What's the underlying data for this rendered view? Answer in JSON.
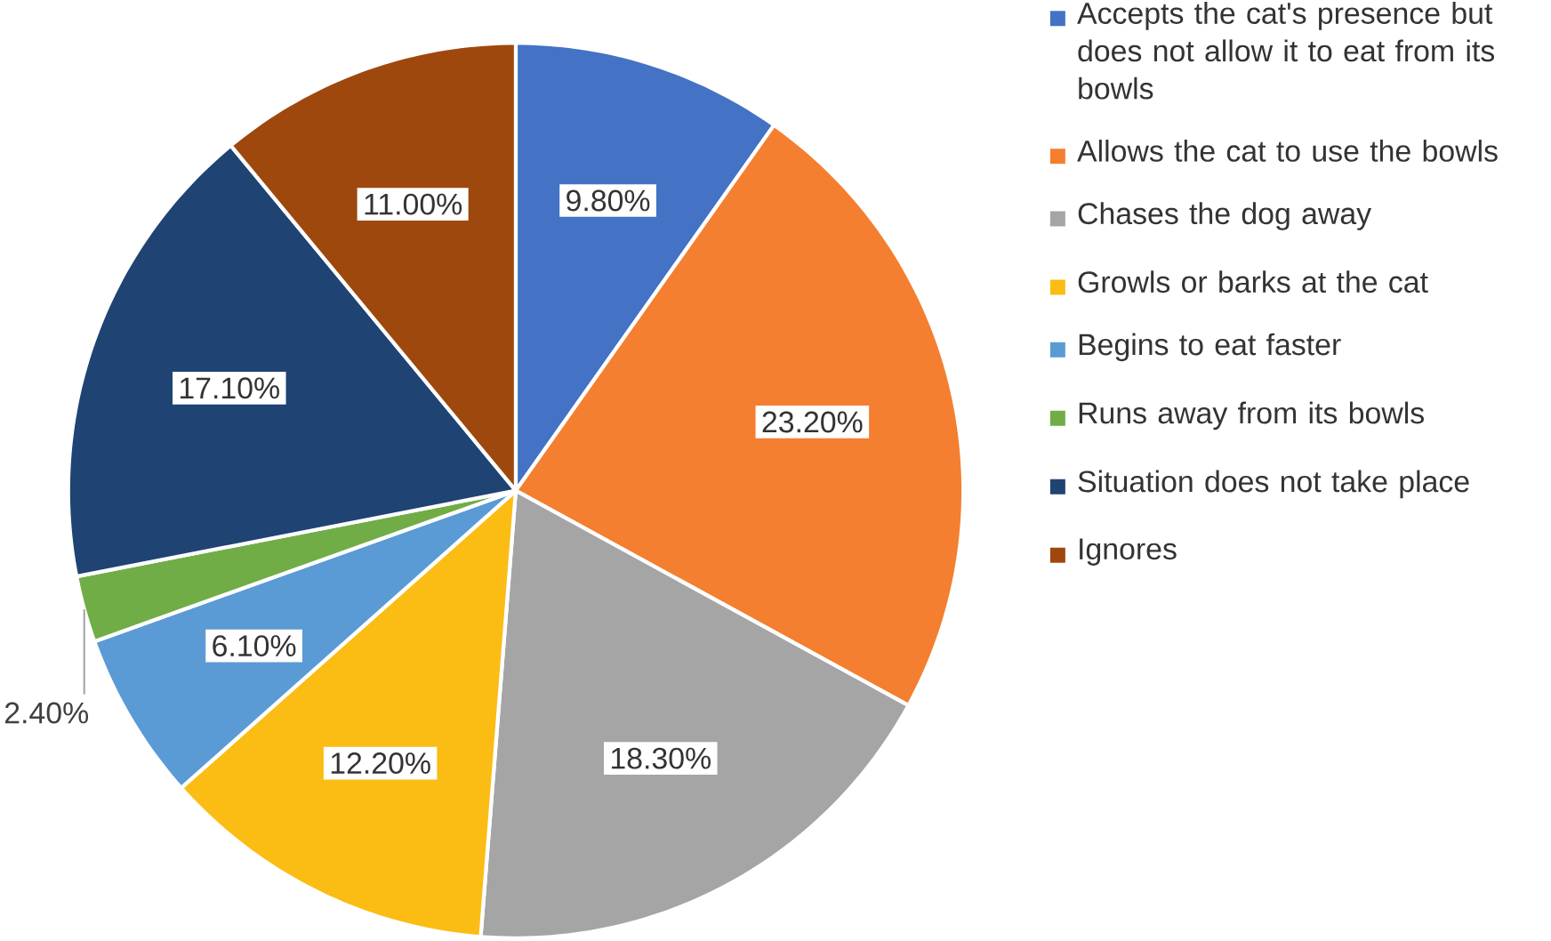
{
  "chart_data": {
    "type": "pie",
    "categories": [
      "Accepts the cat's presence but does not allow it to eat from its bowls",
      "Allows the cat to use the bowls",
      "Chases the dog away",
      "Growls or barks at the cat",
      "Begins to eat faster",
      "Runs away from its bowls",
      "Situation does not take place",
      "Ignores"
    ],
    "values": [
      9.8,
      23.2,
      18.3,
      12.2,
      6.1,
      2.4,
      17.1,
      11.0
    ],
    "value_labels": [
      "9.80%",
      "23.20%",
      "18.30%",
      "12.20%",
      "6.10%",
      "2.40%",
      "17.10%",
      "11.00%"
    ],
    "colors": [
      "#4472c4",
      "#f47f30",
      "#a5a5a5",
      "#fbbc14",
      "#5b9bd5",
      "#70ad47",
      "#1f4373",
      "#9e480e"
    ],
    "legend": "right"
  }
}
